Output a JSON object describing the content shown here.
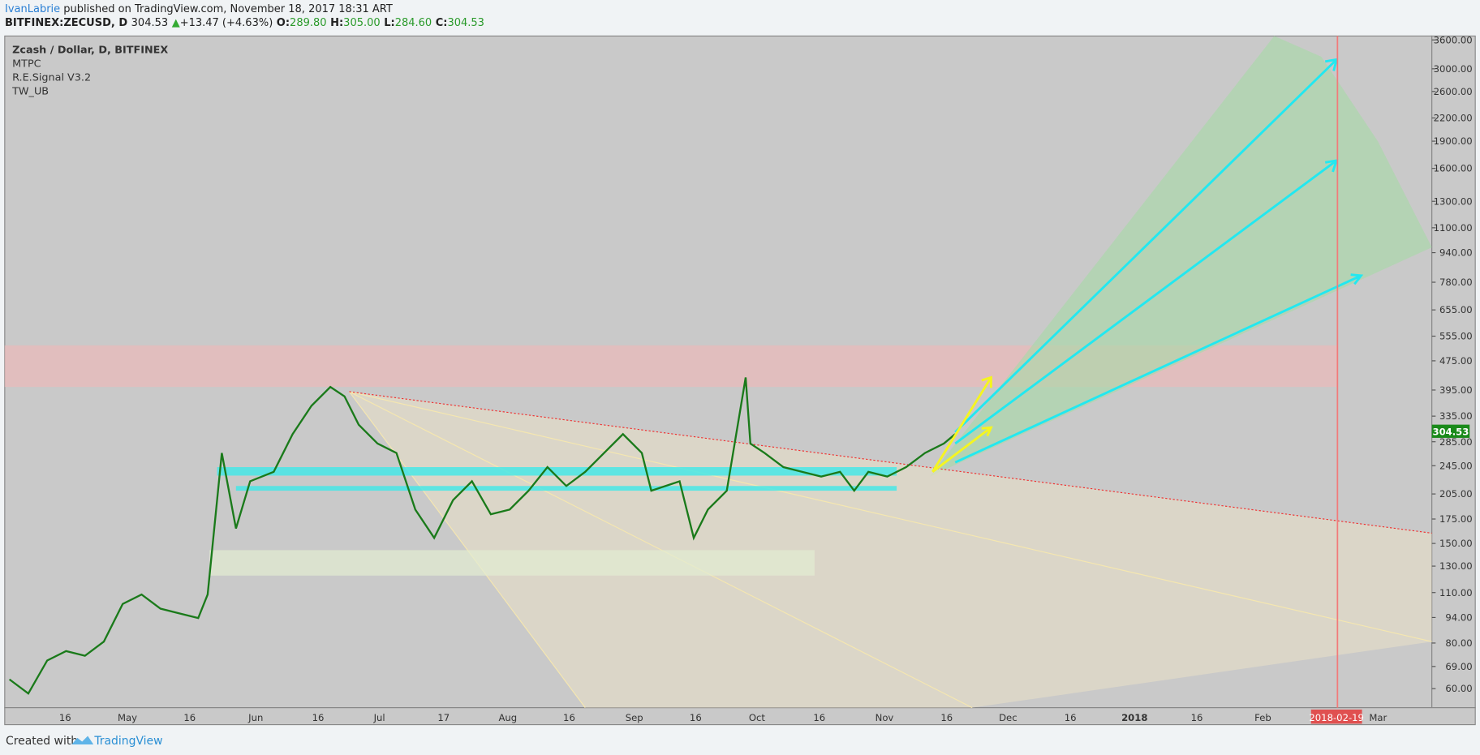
{
  "header": {
    "author": "IvanLabrie",
    "published": "published on TradingView.com, November 18, 2017 18:31 ART",
    "symbol": "BITFINEX:ZECUSD, D",
    "price": "304.53",
    "arrow": "▲",
    "change": "+13.47 (+4.63%)",
    "ohlc": [
      {
        "key": "O:",
        "value": "289.80"
      },
      {
        "key": "H:",
        "value": "305.00"
      },
      {
        "key": "L:",
        "value": "284.60"
      },
      {
        "key": "C:",
        "value": "304.53"
      }
    ]
  },
  "legend": [
    "Zcash / Dollar, D, BITFINEX",
    "MTPC",
    "R.E.Signal V3.2",
    "TW_UB"
  ],
  "price_axis": {
    "ylim": [
      53.2,
      3690
    ],
    "log": true,
    "ticks": [
      {
        "value": 3600,
        "label": "3600.00"
      },
      {
        "value": 3000,
        "label": "3000.00"
      },
      {
        "value": 2600,
        "label": "2600.00"
      },
      {
        "value": 2200,
        "label": "2200.00"
      },
      {
        "value": 1900,
        "label": "1900.00"
      },
      {
        "value": 1600,
        "label": "1600.00"
      },
      {
        "value": 1300,
        "label": "1300.00"
      },
      {
        "value": 1100,
        "label": "1100.00"
      },
      {
        "value": 940,
        "label": "940.00"
      },
      {
        "value": 780,
        "label": "780.00"
      },
      {
        "value": 655,
        "label": "655.00"
      },
      {
        "value": 555,
        "label": "555.00"
      },
      {
        "value": 475,
        "label": "475.00"
      },
      {
        "value": 395,
        "label": "395.00"
      },
      {
        "value": 335,
        "label": "335.00"
      },
      {
        "value": 285,
        "label": "285.00"
      },
      {
        "value": 245,
        "label": "245.00"
      },
      {
        "value": 205,
        "label": "205.00"
      },
      {
        "value": 175,
        "label": "175.00"
      },
      {
        "value": 150,
        "label": "150.00"
      },
      {
        "value": 130,
        "label": "130.00"
      },
      {
        "value": 110,
        "label": "110.00"
      },
      {
        "value": 94,
        "label": "94.00"
      },
      {
        "value": 80,
        "label": "80.00"
      },
      {
        "value": 69,
        "label": "69.00"
      },
      {
        "value": 60,
        "label": "60.00"
      }
    ],
    "last": {
      "value": 304.53,
      "label": "304.53"
    }
  },
  "time_axis": {
    "labels": [
      "16",
      "May",
      "16",
      "Jun",
      "16",
      "Jul",
      "17",
      "Aug",
      "16",
      "Sep",
      "16",
      "Oct",
      "16",
      "Nov",
      "16",
      "Dec",
      "16",
      "2018",
      "16",
      "Feb",
      "2018-02-19",
      "Mar"
    ]
  },
  "footer": {
    "created": "Created with",
    "brand": "TradingView"
  }
}
